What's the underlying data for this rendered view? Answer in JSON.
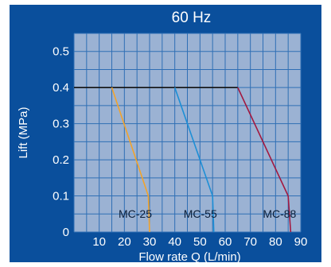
{
  "chart_data": {
    "type": "line",
    "title": "60 Hz",
    "xlabel": "Flow rate Q (L/min)",
    "ylabel": "Lift (MPa)",
    "xlim": [
      0,
      90
    ],
    "ylim": [
      0,
      0.55
    ],
    "x_ticks": [
      10,
      20,
      30,
      40,
      50,
      60,
      70,
      80,
      90
    ],
    "y_ticks": [
      0,
      0.1,
      0.2,
      0.3,
      0.4,
      0.5
    ],
    "grid": true,
    "background": "#0a4f9c",
    "plot_background": "#9bb2d3",
    "grid_color": "#2f6fb5",
    "max_lift_line": {
      "y": 0.4,
      "x_start": 0,
      "x_end": 65,
      "color": "#111111"
    },
    "series": [
      {
        "name": "MC-25",
        "color": "#f2a32b",
        "points": [
          [
            15,
            0.4
          ],
          [
            29.5,
            0.1
          ],
          [
            30,
            0
          ]
        ]
      },
      {
        "name": "MC-55",
        "color": "#1d8fd6",
        "points": [
          [
            40,
            0.4
          ],
          [
            55,
            0.1
          ],
          [
            55.5,
            0
          ]
        ]
      },
      {
        "name": "MC-88",
        "color": "#a3183f",
        "points": [
          [
            65,
            0.4
          ],
          [
            85,
            0.1
          ],
          [
            86,
            0
          ]
        ]
      }
    ]
  }
}
